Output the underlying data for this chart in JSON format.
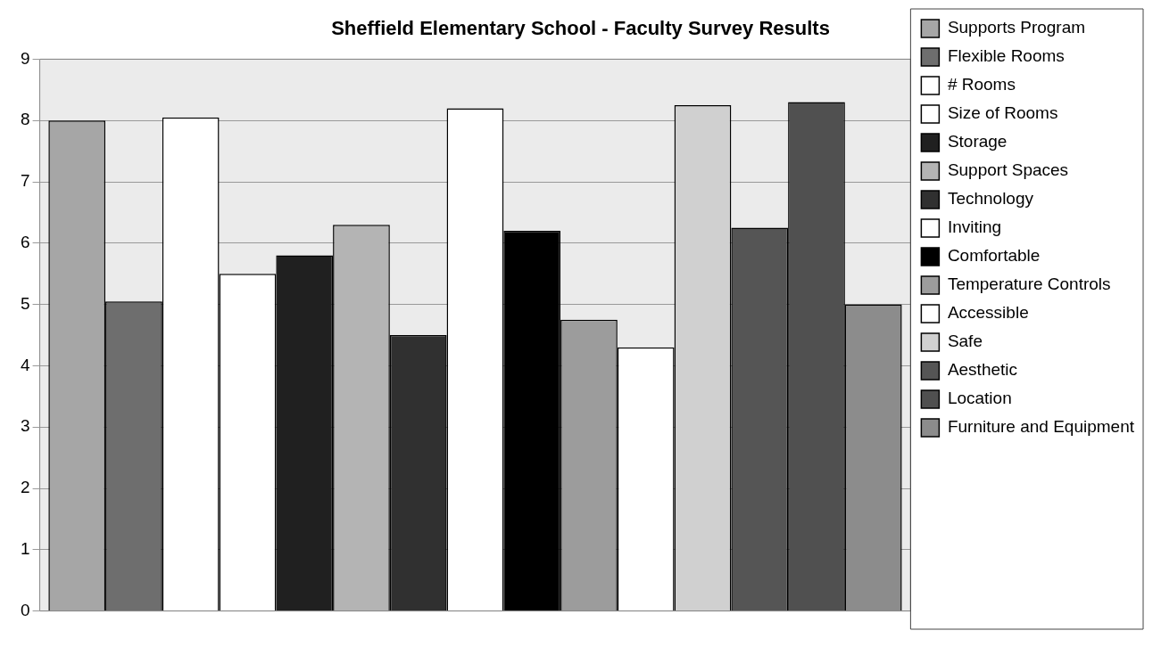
{
  "chart_data": {
    "type": "bar",
    "title": "Sheffield Elementary School - Faculty Survey Results",
    "categories": [
      null
    ],
    "series": [
      {
        "name": "Supports Program",
        "color": "#a6a6a6",
        "values": [
          8.0
        ]
      },
      {
        "name": "Flexible Rooms",
        "color": "#6e6e6e",
        "values": [
          5.05
        ]
      },
      {
        "name": "# Rooms",
        "color": "#ffffff",
        "values": [
          8.05
        ]
      },
      {
        "name": "Size of Rooms",
        "color": "#ffffff",
        "values": [
          5.5
        ]
      },
      {
        "name": "Storage",
        "color": "#202020",
        "values": [
          5.8
        ]
      },
      {
        "name": "Support Spaces",
        "color": "#b4b4b4",
        "values": [
          6.3
        ]
      },
      {
        "name": "Technology",
        "color": "#303030",
        "values": [
          4.5
        ]
      },
      {
        "name": "Inviting",
        "color": "#ffffff",
        "values": [
          8.2
        ]
      },
      {
        "name": "Comfortable",
        "color": "#000000",
        "values": [
          6.2
        ]
      },
      {
        "name": "Temperature Controls",
        "color": "#9c9c9c",
        "values": [
          4.75
        ]
      },
      {
        "name": "Accessible",
        "color": "#ffffff",
        "values": [
          4.3
        ]
      },
      {
        "name": "Safe",
        "color": "#d0d0d0",
        "values": [
          8.25
        ]
      },
      {
        "name": "Aesthetic",
        "color": "#555555",
        "values": [
          6.25
        ]
      },
      {
        "name": "Location",
        "color": "#505050",
        "values": [
          8.3
        ]
      },
      {
        "name": "Furniture and Equipment",
        "color": "#8c8c8c",
        "values": [
          5.0
        ]
      }
    ],
    "ylim": [
      0,
      9
    ],
    "yticks": [
      0,
      1,
      2,
      3,
      4,
      5,
      6,
      7,
      8,
      9
    ],
    "grid": "y",
    "legend": "right"
  }
}
